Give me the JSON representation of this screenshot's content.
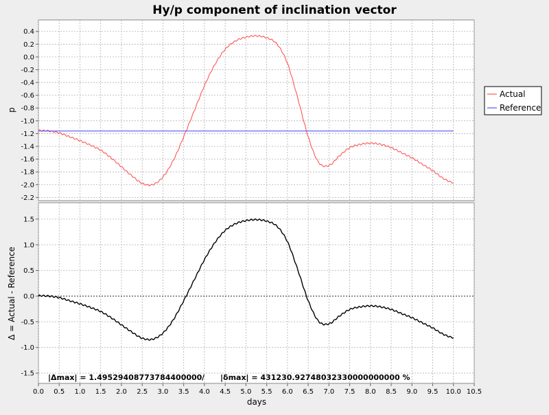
{
  "chart_data": {
    "type": "line",
    "title": "Hy/p component of inclination vector",
    "xlabel": "days",
    "xlim": [
      0.0,
      10.5
    ],
    "x_ticks": [
      "0.0",
      "0.5",
      "1.0",
      "1.5",
      "2.0",
      "2.5",
      "3.0",
      "3.5",
      "4.0",
      "4.5",
      "5.0",
      "5.5",
      "6.0",
      "6.5",
      "7.0",
      "7.5",
      "8.0",
      "8.5",
      "9.0",
      "9.5",
      "10.0",
      "10.5"
    ],
    "grid": true,
    "legend_placement": "right",
    "plots": [
      {
        "ylabel": "p",
        "ylim": [
          -2.25,
          0.58
        ],
        "y_ticks": [
          "0.4",
          "0.2",
          "0.0",
          "-0.2",
          "-0.4",
          "-0.6",
          "-0.8",
          "-1.0",
          "-1.2",
          "-1.4",
          "-1.6",
          "-1.8",
          "-2.0",
          "-2.2"
        ],
        "series": [
          {
            "name": "Actual",
            "color": "#ff5555",
            "x": [
              0.0,
              0.25,
              0.5,
              0.75,
              1.0,
              1.25,
              1.5,
              1.75,
              2.0,
              2.25,
              2.5,
              2.75,
              3.0,
              3.25,
              3.5,
              3.75,
              4.0,
              4.25,
              4.5,
              4.75,
              5.0,
              5.25,
              5.5,
              5.75,
              6.0,
              6.25,
              6.5,
              6.75,
              7.0,
              7.25,
              7.5,
              7.75,
              8.0,
              8.25,
              8.5,
              8.75,
              9.0,
              9.25,
              9.5,
              9.75,
              10.0
            ],
            "y": [
              -1.15,
              -1.16,
              -1.19,
              -1.25,
              -1.31,
              -1.38,
              -1.46,
              -1.58,
              -1.72,
              -1.86,
              -1.98,
              -2.0,
              -1.88,
              -1.62,
              -1.25,
              -0.85,
              -0.45,
              -0.12,
              0.12,
              0.25,
              0.31,
              0.33,
              0.3,
              0.2,
              -0.1,
              -0.65,
              -1.25,
              -1.65,
              -1.7,
              -1.55,
              -1.42,
              -1.37,
              -1.35,
              -1.37,
              -1.42,
              -1.5,
              -1.58,
              -1.68,
              -1.78,
              -1.9,
              -1.97
            ]
          },
          {
            "name": "Reference",
            "color": "#5555ff",
            "x": [
              0.0,
              10.0
            ],
            "y": [
              -1.16,
              -1.16
            ]
          }
        ]
      },
      {
        "ylabel": "Δ = Actual - Reference",
        "ylim": [
          -1.7,
          1.82
        ],
        "y_ticks": [
          "1.5",
          "1.0",
          "0.5",
          "0.0",
          "-0.5",
          "-1.0",
          "-1.5"
        ],
        "series": [
          {
            "name": "Δ",
            "color": "#000000",
            "x": [
              0.0,
              0.25,
              0.5,
              0.75,
              1.0,
              1.25,
              1.5,
              1.75,
              2.0,
              2.25,
              2.5,
              2.75,
              3.0,
              3.25,
              3.5,
              3.75,
              4.0,
              4.25,
              4.5,
              4.75,
              5.0,
              5.25,
              5.5,
              5.75,
              6.0,
              6.25,
              6.5,
              6.75,
              7.0,
              7.25,
              7.5,
              7.75,
              8.0,
              8.25,
              8.5,
              8.75,
              9.0,
              9.25,
              9.5,
              9.75,
              10.0
            ],
            "y": [
              0.01,
              0.0,
              -0.03,
              -0.09,
              -0.15,
              -0.22,
              -0.3,
              -0.42,
              -0.56,
              -0.7,
              -0.82,
              -0.84,
              -0.72,
              -0.46,
              -0.09,
              0.31,
              0.71,
              1.04,
              1.28,
              1.41,
              1.47,
              1.49,
              1.46,
              1.36,
              1.06,
              0.51,
              -0.09,
              -0.49,
              -0.54,
              -0.39,
              -0.26,
              -0.21,
              -0.19,
              -0.21,
              -0.26,
              -0.34,
              -0.42,
              -0.52,
              -0.62,
              -0.74,
              -0.81
            ]
          }
        ],
        "zero_line": true,
        "annotation_left": "|Δmax| = 1.49529408773784400000",
        "annotation_sep": "/",
        "annotation_right": "|δmax| = 431230.92748032330000000000 %"
      }
    ]
  }
}
